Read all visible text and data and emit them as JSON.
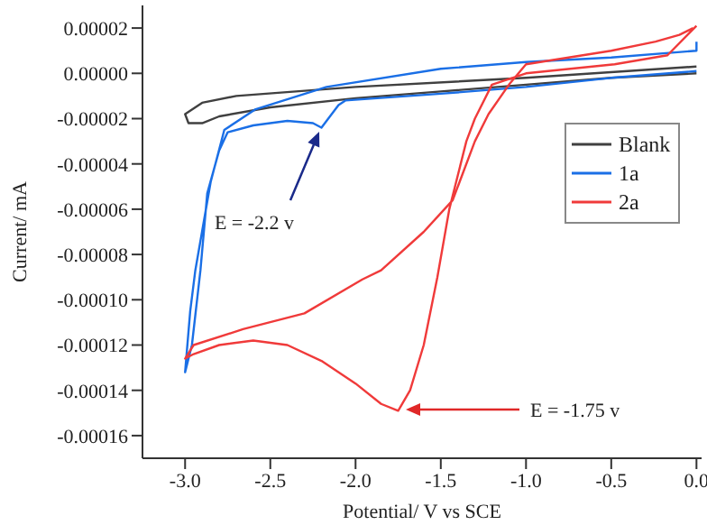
{
  "chart_data": {
    "type": "line",
    "xlabel": "Potential/ V vs SCE",
    "ylabel": "Current/ mA",
    "xlim": [
      -3.25,
      0.03
    ],
    "ylim": [
      -0.00017,
      3e-05
    ],
    "xticks": [
      {
        "value": -3,
        "label": "-3.0"
      },
      {
        "value": -2.5,
        "label": "-2.5"
      },
      {
        "value": -2,
        "label": "-2.0"
      },
      {
        "value": -1.5,
        "label": "-1.5"
      },
      {
        "value": -1,
        "label": "-1.0"
      },
      {
        "value": -0.5,
        "label": "-0.5"
      },
      {
        "value": 0,
        "label": "0.0"
      }
    ],
    "yticks": [
      {
        "value": -0.00016,
        "label": "-0.00016"
      },
      {
        "value": -0.00014,
        "label": "-0.00014"
      },
      {
        "value": -0.00012,
        "label": "-0.00012"
      },
      {
        "value": -0.0001,
        "label": "-0.00010"
      },
      {
        "value": -8e-05,
        "label": "-0.00008"
      },
      {
        "value": -6e-05,
        "label": "-0.00006"
      },
      {
        "value": -4e-05,
        "label": "-0.00004"
      },
      {
        "value": -2e-05,
        "label": "-0.00002"
      },
      {
        "value": 0,
        "label": "0.00000"
      },
      {
        "value": 2e-05,
        "label": "0.00002"
      }
    ],
    "legend": "right",
    "marker": "none",
    "line_style": "solid",
    "series": [
      {
        "name": "Blank",
        "color": "#404040",
        "x": [
          0,
          -1,
          -2,
          -2.7,
          -2.9,
          -3,
          -2.98,
          -2.9,
          -2.8,
          -2.5,
          -2,
          -1.5,
          -1,
          -0.5,
          0
        ],
        "values": [
          3e-06,
          -2e-06,
          -6e-06,
          -1e-05,
          -1.3e-05,
          -1.8e-05,
          -2.2e-05,
          -2.2e-05,
          -1.9e-05,
          -1.5e-05,
          -1.1e-05,
          -8e-06,
          -5e-06,
          -2e-06,
          0
        ]
      },
      {
        "name": "1a",
        "color": "#1a6fe6",
        "x": [
          0,
          -0.5,
          -1,
          -1.5,
          -2.06,
          -2.1,
          -2.15,
          -2.2,
          -2.25,
          -2.4,
          -2.6,
          -2.75,
          -2.8,
          -2.87,
          -2.91,
          -2.96,
          -3,
          -2.97,
          -2.94,
          -2.85,
          -2.77,
          -2.59,
          -2.17,
          -1.5,
          -1,
          -0.5,
          0,
          0
        ],
        "values": [
          1e-06,
          -2e-06,
          -6e-06,
          -9e-06,
          -1.2e-05,
          -1.4e-05,
          -1.9e-05,
          -2.4e-05,
          -2.2e-05,
          -2.1e-05,
          -2.3e-05,
          -2.6e-05,
          -3.4e-05,
          -5.3e-05,
          -8.7e-05,
          -0.00012,
          -0.000132,
          -0.000105,
          -8.7e-05,
          -4.8e-05,
          -2.5e-05,
          -1.6e-05,
          -6e-06,
          2e-06,
          5e-06,
          7e-06,
          1e-05,
          1.4e-05
        ]
      },
      {
        "name": "2a",
        "color": "#f03a3a",
        "x": [
          0,
          -0.17,
          -0.48,
          -1,
          -1.2,
          -1.3,
          -1.35,
          -1.45,
          -1.52,
          -1.6,
          -1.68,
          -1.75,
          -1.85,
          -2,
          -2.2,
          -2.4,
          -2.6,
          -2.8,
          -2.95,
          -3,
          -2.95,
          -2.66,
          -2.3,
          -1.96,
          -1.85,
          -1.6,
          -1.43,
          -1.3,
          -1.22,
          -1.1,
          -1,
          -0.5,
          -0.24,
          -0.1,
          -0.02
        ],
        "values": [
          2.1e-05,
          8e-06,
          4e-06,
          0,
          -5e-06,
          -2e-05,
          -3e-05,
          -6e-05,
          -9e-05,
          -0.00012,
          -0.00014,
          -0.000149,
          -0.000146,
          -0.000137,
          -0.000127,
          -0.00012,
          -0.000118,
          -0.00012,
          -0.000124,
          -0.000126,
          -0.00012,
          -0.000113,
          -0.000106,
          -9.1e-05,
          -8.7e-05,
          -7e-05,
          -5.6e-05,
          -3e-05,
          -1.8e-05,
          -5e-06,
          4e-06,
          1e-05,
          1.4e-05,
          1.7e-05,
          2e-05
        ]
      }
    ],
    "annotations": [
      "E = -2.2 v",
      "E = -1.75 v"
    ]
  }
}
